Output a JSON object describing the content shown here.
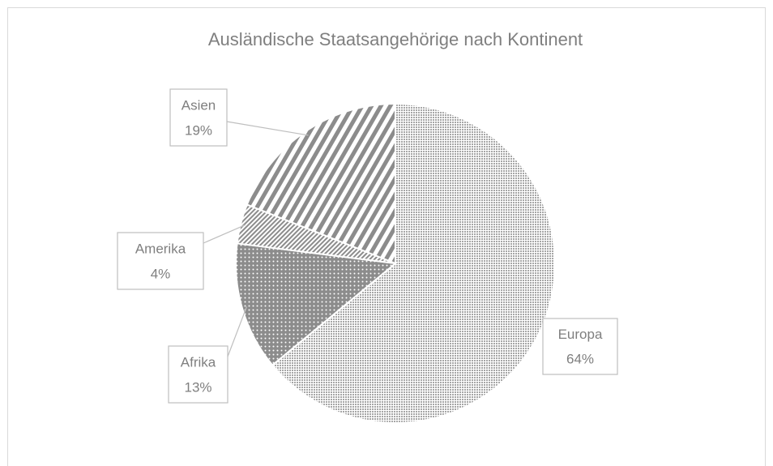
{
  "chart_data": {
    "type": "pie",
    "title": "Ausländische Staatsangehörige nach Kontinent",
    "categories": [
      "Europa",
      "Afrika",
      "Amerika",
      "Asien"
    ],
    "values": [
      64,
      13,
      4,
      19
    ],
    "value_labels": [
      "64%",
      "13%",
      "4%",
      "19%"
    ],
    "colors": [
      "#a6a6a6",
      "#8c8c8c",
      "#8c8c8c",
      "#8c8c8c"
    ]
  }
}
